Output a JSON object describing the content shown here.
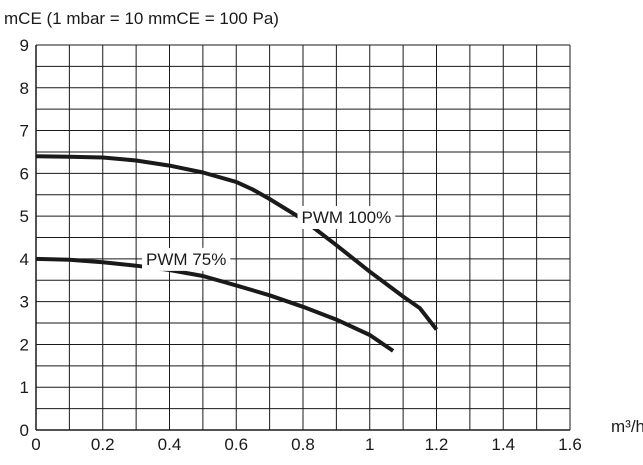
{
  "chart_data": {
    "type": "line",
    "ylabel": "mCE (1 mbar = 10 mmCE = 100 Pa)",
    "xlabel": "m³/h",
    "xlim": [
      0,
      1.6
    ],
    "ylim": [
      0,
      9
    ],
    "x_ticks": [
      "0",
      "0.2",
      "0.4",
      "0.6",
      "0.8",
      "1",
      "1.2",
      "1.4",
      "1.6"
    ],
    "y_ticks": [
      "0",
      "1",
      "2",
      "3",
      "4",
      "5",
      "6",
      "7",
      "8",
      "9"
    ],
    "grid": true,
    "x_grid_step": 0.1,
    "y_grid_step": 0.5,
    "series": [
      {
        "name": "PWM 100%",
        "color": "#1a1a1a",
        "x": [
          0,
          0.1,
          0.2,
          0.3,
          0.4,
          0.5,
          0.6,
          0.65,
          0.7,
          0.8,
          0.9,
          1.0,
          1.1,
          1.15,
          1.2
        ],
        "y": [
          6.4,
          6.39,
          6.37,
          6.3,
          6.18,
          6.02,
          5.8,
          5.62,
          5.4,
          4.92,
          4.32,
          3.7,
          3.12,
          2.85,
          2.35
        ]
      },
      {
        "name": "PWM 75%",
        "color": "#1a1a1a",
        "x": [
          0,
          0.1,
          0.2,
          0.3,
          0.4,
          0.5,
          0.6,
          0.7,
          0.8,
          0.9,
          1.0,
          1.07
        ],
        "y": [
          4.0,
          3.98,
          3.92,
          3.84,
          3.74,
          3.6,
          3.38,
          3.15,
          2.88,
          2.58,
          2.22,
          1.85
        ]
      }
    ]
  }
}
